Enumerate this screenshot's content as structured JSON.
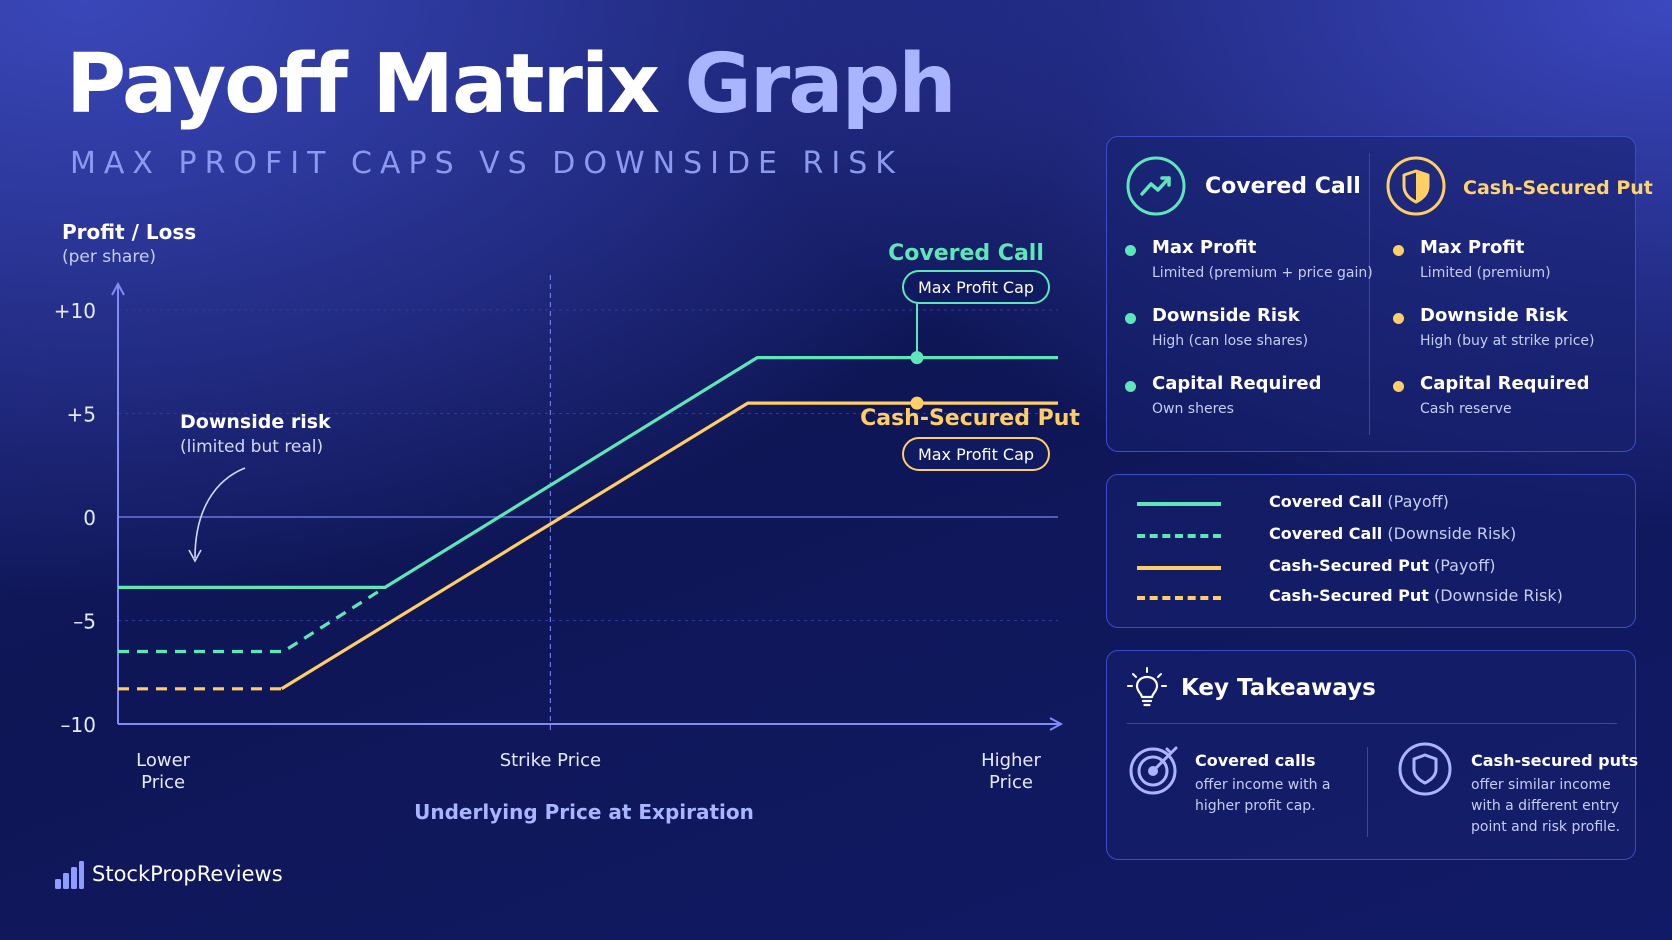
{
  "title": {
    "part1": "Payoff Matrix ",
    "part2": "Graph"
  },
  "subtitle": "MAX PROFIT CAPS  VS  DOWNSIDE RISK",
  "colors": {
    "covered_call": "#5ee6b8",
    "cash_secured_put": "#ffcf66",
    "axis": "#7f8cf5",
    "accent": "#a9b6ff"
  },
  "chart_data": {
    "type": "line",
    "ylabel": "Profit / Loss",
    "ylabel_sub": "(per share)",
    "xlabel": "Underlying Price at Expiration",
    "ylim": [
      -10,
      10
    ],
    "xlim": [
      0,
      100
    ],
    "yticks": [
      {
        "value": 10,
        "label": "+10"
      },
      {
        "value": 5,
        "label": "+5"
      },
      {
        "value": 0,
        "label": "0"
      },
      {
        "value": -5,
        "label": "–5"
      },
      {
        "value": -10,
        "label": "–10"
      }
    ],
    "xticks": [
      {
        "value": 4.8,
        "lines": [
          "Lower",
          "Price"
        ]
      },
      {
        "value": 46,
        "lines": [
          "Strike Price"
        ]
      },
      {
        "value": 95,
        "lines": [
          "Higher",
          "Price"
        ]
      }
    ],
    "strike_x": 46,
    "series": [
      {
        "name": "Covered Call",
        "role": "payoff",
        "color": "#5ee6b8",
        "dashed": false,
        "points": [
          [
            0,
            -3.4
          ],
          [
            28.4,
            -3.4
          ],
          [
            68,
            7.7
          ],
          [
            100,
            7.7
          ]
        ]
      },
      {
        "name": "Covered Call",
        "role": "downside",
        "color": "#5ee6b8",
        "dashed": true,
        "points": [
          [
            0,
            -6.5
          ],
          [
            17.6,
            -6.5
          ],
          [
            28.4,
            -3.4
          ]
        ]
      },
      {
        "name": "Cash-Secured Put",
        "role": "payoff",
        "color": "#ffcf66",
        "dashed": false,
        "points": [
          [
            17.4,
            -8.3
          ],
          [
            67,
            5.5
          ],
          [
            100,
            5.5
          ]
        ]
      },
      {
        "name": "Cash-Secured Put",
        "role": "downside",
        "color": "#ffcf66",
        "dashed": true,
        "points": [
          [
            0,
            -8.3
          ],
          [
            17.4,
            -8.3
          ]
        ]
      }
    ],
    "markers": [
      {
        "x": 85,
        "y": 7.7,
        "color": "#5ee6b8"
      },
      {
        "x": 85,
        "y": 5.5,
        "color": "#ffcf66"
      }
    ],
    "annotations": [
      {
        "series": "Covered Call",
        "label": "Covered Call",
        "badge": "Max Profit Cap",
        "color": "#5ee6b8"
      },
      {
        "series": "Cash-Secured Put",
        "label": "Cash-Secured Put",
        "badge": "Max Profit Cap",
        "color": "#ffcf66"
      },
      {
        "label": "Downside risk",
        "sub": "(limited but real)"
      }
    ],
    "legend": [
      {
        "name": "Covered Call",
        "suffix": "(Payoff)",
        "color": "#5ee6b8",
        "dashed": false
      },
      {
        "name": "Covered Call",
        "suffix": "(Downside Risk)",
        "color": "#5ee6b8",
        "dashed": true
      },
      {
        "name": "Cash-Secured Put",
        "suffix": "(Payoff)",
        "color": "#ffcf66",
        "dashed": false
      },
      {
        "name": "Cash-Secured Put",
        "suffix": "(Downside Risk)",
        "color": "#ffcf66",
        "dashed": true
      }
    ],
    "grid": true,
    "legend_position": "right"
  },
  "strategies": [
    {
      "name": "Covered Call",
      "color": "#5ee6b8",
      "icon": "trend-up-icon",
      "items": [
        {
          "label": "Max Profit",
          "value": "Limited (premium + price gain)"
        },
        {
          "label": "Downside Risk",
          "value": "High (can lose shares)"
        },
        {
          "label": "Capital Required",
          "value": "Own sheres"
        }
      ]
    },
    {
      "name": "Cash-Secured Put",
      "color": "#ffcf66",
      "icon": "shield-icon",
      "items": [
        {
          "label": "Max Profit",
          "value": "Limited (premium)"
        },
        {
          "label": "Downside Risk",
          "value": "High (buy at strike price)"
        },
        {
          "label": "Capital Required",
          "value": "Cash reserve"
        }
      ]
    }
  ],
  "takeaways": {
    "title": "Key Takeaways",
    "items": [
      {
        "icon": "target-icon",
        "title": "Covered calls",
        "lines": [
          "offer income with a",
          "higher profit cap."
        ]
      },
      {
        "icon": "shield-outline-icon",
        "title": "Cash-secured puts",
        "lines": [
          "offer similar income",
          "with a different entry",
          "point and risk profile."
        ]
      }
    ]
  },
  "brand": "StockPropReviews"
}
